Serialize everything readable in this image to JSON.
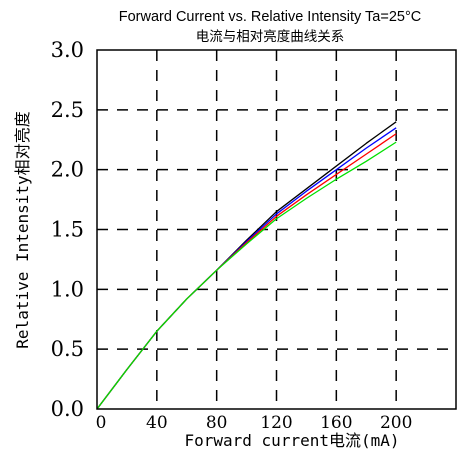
{
  "chart_data": {
    "type": "line",
    "title": "Forward Current vs. Relative Intensity  Ta=25°C",
    "subtitle": "电流与相对亮度曲线关系",
    "xlabel": "Forward current电流(mA)",
    "ylabel": "Relative Intensity相对亮度",
    "xlim": [
      0,
      240
    ],
    "ylim": [
      0,
      3.0
    ],
    "x_ticks": [
      "0",
      "40",
      "80",
      "120",
      "160",
      "200"
    ],
    "y_ticks": [
      "0.0",
      "0.5",
      "1.0",
      "1.5",
      "2.0",
      "2.5",
      "3.0"
    ],
    "grid": "dashed",
    "series": [
      {
        "color": "#000000",
        "x": [
          0,
          20,
          40,
          60,
          80,
          100,
          120,
          140,
          160,
          180,
          200
        ],
        "y": [
          0,
          0.33,
          0.65,
          0.92,
          1.16,
          1.41,
          1.65,
          1.84,
          2.03,
          2.22,
          2.4
        ]
      },
      {
        "color": "#0000ff",
        "x": [
          0,
          20,
          40,
          60,
          80,
          100,
          120,
          140,
          160,
          180,
          200
        ],
        "y": [
          0,
          0.33,
          0.65,
          0.92,
          1.16,
          1.4,
          1.63,
          1.82,
          2.0,
          2.18,
          2.35
        ]
      },
      {
        "color": "#ff0000",
        "x": [
          0,
          20,
          40,
          60,
          80,
          100,
          120,
          140,
          160,
          180,
          200
        ],
        "y": [
          0,
          0.33,
          0.65,
          0.92,
          1.16,
          1.39,
          1.61,
          1.79,
          1.96,
          2.13,
          2.3
        ]
      },
      {
        "color": "#00e000",
        "x": [
          0,
          20,
          40,
          60,
          80,
          100,
          120,
          140,
          160,
          180,
          200
        ],
        "y": [
          0,
          0.33,
          0.65,
          0.92,
          1.16,
          1.38,
          1.59,
          1.76,
          1.92,
          2.07,
          2.23
        ]
      }
    ]
  }
}
